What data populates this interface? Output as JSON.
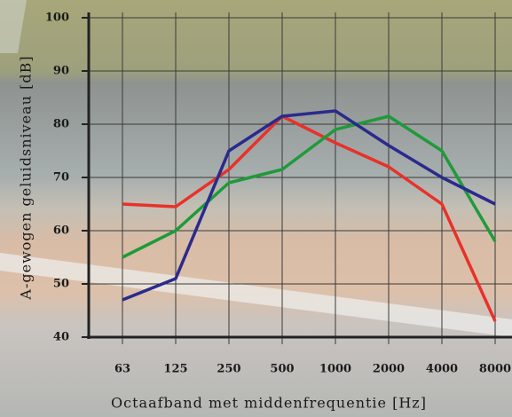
{
  "chart_data": {
    "type": "line",
    "x_label": "Octaafband met middenfrequentie [Hz]",
    "y_label": "A-gewogen geluidsniveau [dB]",
    "categories": [
      "63",
      "125",
      "250",
      "500",
      "1000",
      "2000",
      "4000",
      "8000"
    ],
    "series": [
      {
        "color": "#e8312a",
        "values": [
          65,
          64.5,
          71.5,
          81.5,
          76.5,
          72,
          65,
          43
        ]
      },
      {
        "color": "#1f9a3a",
        "values": [
          55,
          60,
          69,
          71.5,
          79,
          81.5,
          75,
          58
        ]
      },
      {
        "color": "#2b2a8c",
        "values": [
          47,
          51,
          75,
          81.5,
          82.5,
          76,
          70,
          65
        ]
      }
    ],
    "ylim": [
      40,
      100
    ],
    "yticks": [
      40,
      50,
      60,
      70,
      80,
      90,
      100
    ],
    "grid": true
  }
}
